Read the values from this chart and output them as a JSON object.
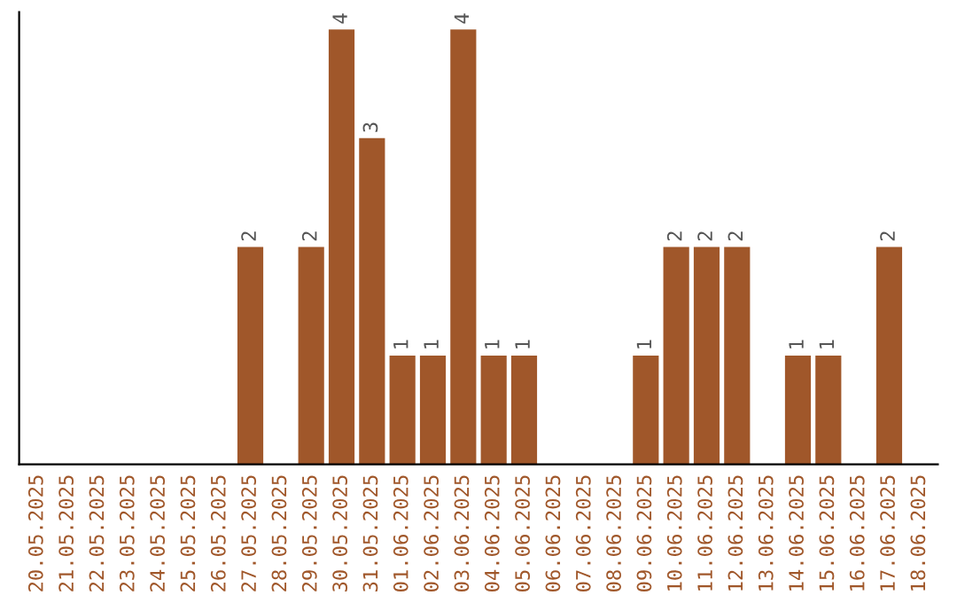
{
  "chart_data": {
    "type": "bar",
    "categories": [
      "20.05.2025",
      "21.05.2025",
      "22.05.2025",
      "23.05.2025",
      "24.05.2025",
      "25.05.2025",
      "26.05.2025",
      "27.05.2025",
      "28.05.2025",
      "29.05.2025",
      "30.05.2025",
      "31.05.2025",
      "01.06.2025",
      "02.06.2025",
      "03.06.2025",
      "04.06.2025",
      "05.06.2025",
      "06.06.2025",
      "07.06.2025",
      "08.06.2025",
      "09.06.2025",
      "10.06.2025",
      "11.06.2025",
      "12.06.2025",
      "13.06.2025",
      "14.06.2025",
      "15.06.2025",
      "16.06.2025",
      "17.06.2025",
      "18.06.2025"
    ],
    "values": [
      0,
      0,
      0,
      0,
      0,
      0,
      0,
      2,
      0,
      2,
      4,
      3,
      1,
      1,
      4,
      1,
      1,
      0,
      0,
      0,
      1,
      2,
      2,
      2,
      0,
      1,
      1,
      0,
      2,
      0
    ],
    "value_labels": [
      null,
      null,
      null,
      null,
      null,
      null,
      null,
      "2",
      null,
      "2",
      "4",
      "3",
      "1",
      "1",
      "4",
      "1",
      "1",
      null,
      null,
      null,
      "1",
      "2",
      "2",
      "2",
      null,
      "1",
      "1",
      null,
      "2",
      null
    ],
    "color": "#a0572a",
    "tick_labels": "x"
  }
}
